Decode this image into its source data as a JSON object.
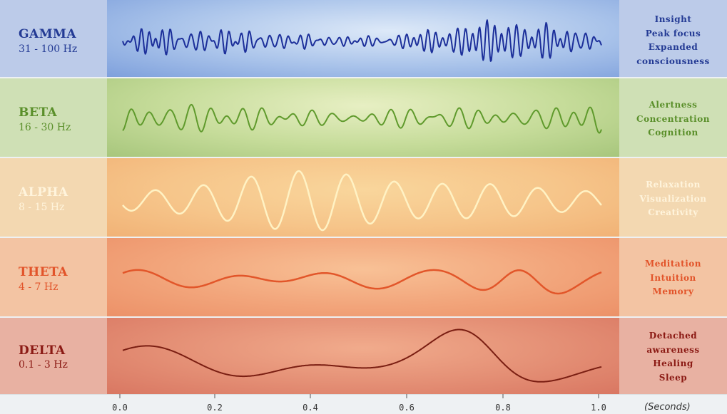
{
  "bands": [
    {
      "name": "GAMMA",
      "range": "31 - 100 Hz",
      "effects": [
        "Insight",
        "Peak focus",
        "Expanded",
        "consciousness"
      ],
      "color": "#233a94",
      "wave_color": "#1c2f9a"
    },
    {
      "name": "BETA",
      "range": "16 - 30 Hz",
      "effects": [
        "Alertness",
        "Concentration",
        "Cognition"
      ],
      "color": "#5a8f2a",
      "wave_color": "#5f9a2c"
    },
    {
      "name": "ALPHA",
      "range": "8 - 15 Hz",
      "effects": [
        "Relaxation",
        "Visualization",
        "Creativity"
      ],
      "color": "#fff4dc",
      "wave_color": "#fff2c4"
    },
    {
      "name": "THETA",
      "range": "4 - 7 Hz",
      "effects": [
        "Meditation",
        "Intuition",
        "Memory"
      ],
      "color": "#e2542a",
      "wave_color": "#e2562a"
    },
    {
      "name": "DELTA",
      "range": "0.1 - 3 Hz",
      "effects": [
        "Detached",
        "awareness",
        "Healing",
        "Sleep"
      ],
      "color": "#8b1a14",
      "wave_color": "#7a1e12"
    }
  ],
  "axis": {
    "ticks": [
      "0.0",
      "0.2",
      "0.4",
      "0.6",
      "0.8",
      "1.0"
    ],
    "unit": "(Seconds)"
  }
}
